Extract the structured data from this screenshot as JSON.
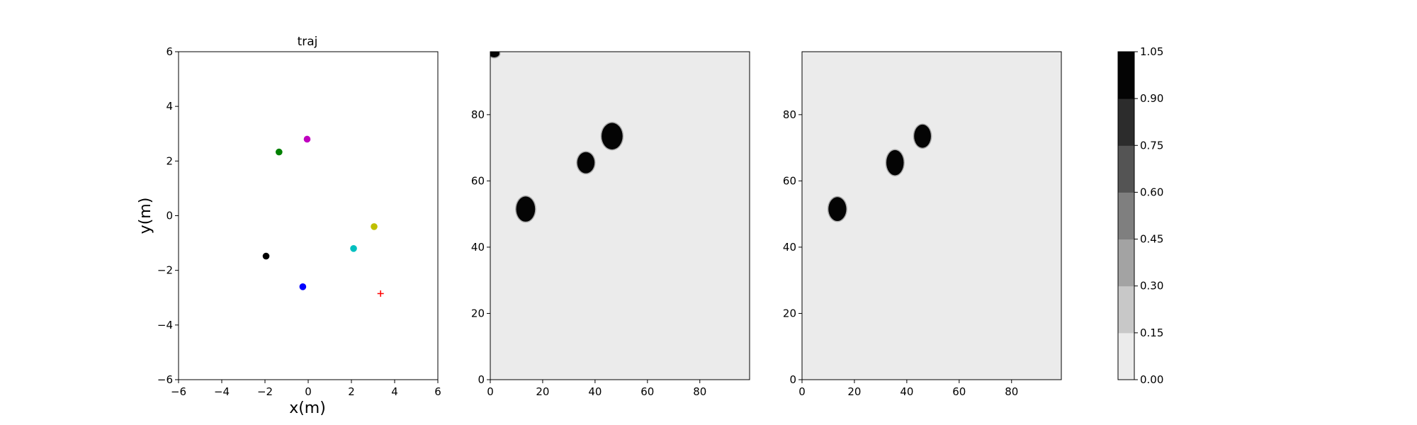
{
  "chart_data": [
    {
      "type": "scatter",
      "title": "traj",
      "xlabel": "x(m)",
      "ylabel": "y(m)",
      "xlim": [
        -6,
        6
      ],
      "ylim": [
        -6,
        6
      ],
      "xticks": [
        -6,
        -4,
        -2,
        0,
        2,
        4,
        6
      ],
      "yticks": [
        -6,
        -4,
        -2,
        0,
        2,
        4,
        6
      ],
      "grid": false,
      "points": [
        {
          "x": -1.35,
          "y": 2.33,
          "color": "#008000",
          "marker": "circle"
        },
        {
          "x": -0.05,
          "y": 2.8,
          "color": "#bf00bf",
          "marker": "circle"
        },
        {
          "x": 3.05,
          "y": -0.4,
          "color": "#bfbf00",
          "marker": "circle"
        },
        {
          "x": 2.1,
          "y": -1.2,
          "color": "#00bfbf",
          "marker": "circle"
        },
        {
          "x": -1.95,
          "y": -1.48,
          "color": "#000000",
          "marker": "circle"
        },
        {
          "x": -0.25,
          "y": -2.6,
          "color": "#0000ff",
          "marker": "circle"
        },
        {
          "x": 3.35,
          "y": -2.85,
          "color": "#ff0000",
          "marker": "plus"
        }
      ]
    },
    {
      "type": "heatmap",
      "title": "",
      "xlim": [
        0,
        99
      ],
      "ylim": [
        0,
        99
      ],
      "xticks": [
        0,
        20,
        40,
        60,
        80
      ],
      "yticks": [
        0,
        20,
        40,
        60,
        80
      ],
      "background_value": 0.05,
      "blobs": [
        {
          "x": 13.5,
          "y": 51.5,
          "rx": 3.6,
          "ry": 3.8,
          "value": 1.0
        },
        {
          "x": 36.5,
          "y": 65.5,
          "rx": 3.3,
          "ry": 3.2,
          "value": 1.0
        },
        {
          "x": 46.5,
          "y": 73.5,
          "rx": 4.0,
          "ry": 4.0,
          "value": 1.0
        },
        {
          "x": 1.5,
          "y": 98.5,
          "rx": 2.0,
          "ry": 1.2,
          "value": 1.0
        }
      ]
    },
    {
      "type": "heatmap",
      "title": "",
      "xlim": [
        0,
        99
      ],
      "ylim": [
        0,
        99
      ],
      "xticks": [
        0,
        20,
        40,
        60,
        80
      ],
      "yticks": [
        0,
        20,
        40,
        60,
        80
      ],
      "background_value": 0.05,
      "blobs": [
        {
          "x": 13.5,
          "y": 51.5,
          "rx": 3.4,
          "ry": 3.6,
          "value": 1.0
        },
        {
          "x": 35.5,
          "y": 65.5,
          "rx": 3.3,
          "ry": 3.8,
          "value": 1.0
        },
        {
          "x": 46.0,
          "y": 73.5,
          "rx": 3.2,
          "ry": 3.5,
          "value": 1.0
        }
      ]
    },
    {
      "type": "colorbar",
      "ticks": [
        "0.00",
        "0.15",
        "0.30",
        "0.45",
        "0.60",
        "0.75",
        "0.90",
        "1.05"
      ],
      "range": [
        0.0,
        1.05
      ],
      "level_colors": [
        "#ebebeb",
        "#c8c8c8",
        "#a3a3a3",
        "#7f7f7f",
        "#545454",
        "#2c2c2c",
        "#040404"
      ]
    }
  ]
}
